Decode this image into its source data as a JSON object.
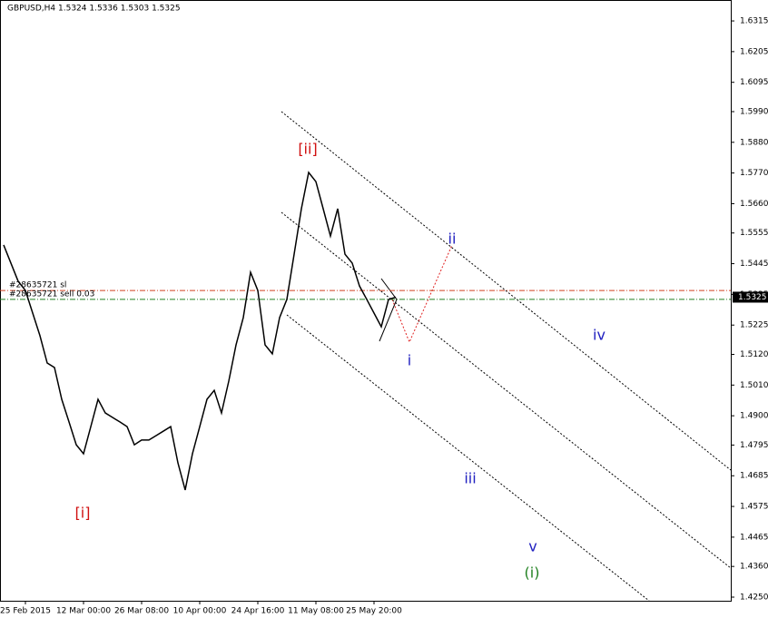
{
  "chart_data": {
    "type": "line",
    "title": "GBPUSD,H4  1.5324 1.5336 1.5303 1.5325",
    "color": "#000000",
    "categories": [
      null,
      null,
      null,
      "25 Feb 2015",
      null,
      null,
      null,
      null,
      null,
      null,
      null,
      "12 Mar 00:00",
      null,
      null,
      null,
      null,
      null,
      null,
      null,
      "26 Mar 08:00",
      null,
      null,
      null,
      null,
      null,
      null,
      null,
      "10 Apr 00:00",
      null,
      null,
      null,
      null,
      null,
      null,
      null,
      "24 Apr 16:00",
      null,
      null,
      null,
      null,
      null,
      null,
      null,
      "11 May 08:00",
      null,
      null,
      null,
      null,
      null,
      null,
      null,
      "25 May 20:00",
      null,
      null,
      null
    ],
    "values": [
      1.5512,
      1.5447,
      1.5382,
      1.5349,
      1.5268,
      1.5187,
      1.5089,
      1.5073,
      1.4959,
      1.4878,
      1.4796,
      1.4764,
      1.4861,
      1.4959,
      1.491,
      1.4894,
      1.4878,
      1.4861,
      1.4796,
      1.4813,
      1.4813,
      1.4829,
      1.4845,
      1.4861,
      1.4731,
      1.4634,
      1.4764,
      1.4861,
      1.4959,
      1.4991,
      1.491,
      1.5024,
      1.5154,
      1.5252,
      1.5414,
      1.5349,
      1.5154,
      1.5122,
      1.5252,
      1.5317,
      1.5479,
      1.5642,
      1.5772,
      1.5739,
      1.5642,
      1.5544,
      1.5642,
      1.5479,
      1.5447,
      1.5365,
      1.5317,
      1.5268,
      1.5219,
      1.5317,
      1.5325
    ],
    "ylim": [
      1.4237,
      1.639
    ],
    "yticks": [
      1.6315,
      1.6205,
      1.6095,
      {
        "value": 1.599,
        "label": "1.5990"
      },
      {
        "value": 1.588,
        "label": "1.5880"
      },
      {
        "value": 1.577,
        "label": "1.5770"
      },
      {
        "value": 1.566,
        "label": "1.5660"
      },
      1.5555,
      1.5445,
      1.5335,
      1.5225,
      {
        "value": 1.512,
        "label": "1.5120"
      },
      {
        "value": 1.501,
        "label": "1.5010"
      },
      {
        "value": 1.49,
        "label": "1.4900"
      },
      1.4795,
      1.4685,
      1.4575,
      1.4465,
      {
        "value": 1.436,
        "label": "1.4360"
      },
      {
        "value": 1.425,
        "label": "1.4250"
      }
    ],
    "last_price": 1.5325,
    "orders": [
      {
        "label": "#28635721 sl",
        "value": 1.5349,
        "color": "#d04020"
      },
      {
        "label": "#28635721 sell 0.03",
        "value": 1.5317,
        "color": "#208020"
      }
    ],
    "annotations": [
      {
        "text": "[i]",
        "color": "#d01010"
      },
      {
        "text": "[ii]",
        "color": "#d01010"
      },
      {
        "text": "i",
        "color": "#2020c0"
      },
      {
        "text": "ii",
        "color": "#2020c0"
      },
      {
        "text": "iii",
        "color": "#2020c0"
      },
      {
        "text": "iv",
        "color": "#2020c0"
      },
      {
        "text": "v",
        "color": "#2020c0"
      },
      {
        "text": "(i)",
        "color": "#208020"
      }
    ]
  }
}
